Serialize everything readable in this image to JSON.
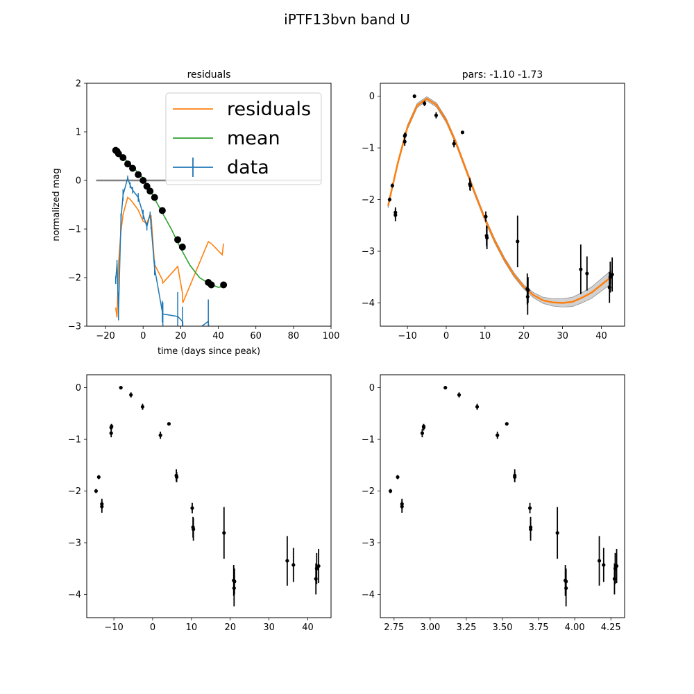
{
  "figure": {
    "suptitle": "iPTF13bvn band U"
  },
  "chart_data": [
    {
      "type": "line",
      "title": "residuals",
      "xlabel": "time (days since peak)",
      "ylabel": "normalized mag",
      "xlim": [
        -30,
        100
      ],
      "ylim": [
        -3,
        2
      ],
      "xticks": [
        -20,
        0,
        20,
        40,
        60,
        80,
        100
      ],
      "yticks": [
        -3,
        -2,
        -1,
        0,
        1,
        2
      ],
      "legend": {
        "placement": "upper-right",
        "entries": [
          "residuals",
          "mean",
          "data"
        ]
      },
      "colors": {
        "residuals": "#ff7f0e",
        "mean": "#2ca02c",
        "data": "#1f77b4",
        "baseline": "#808080",
        "markers": "#000000"
      },
      "baseline": {
        "x": [
          -25,
          95
        ],
        "y": 0
      },
      "series": [
        {
          "name": "residuals",
          "x": [
            -14.6,
            -13.9,
            -13.1,
            -11.8,
            -10.7,
            -8.2,
            -6.9,
            -5.6,
            -2.6,
            0,
            2,
            3.7,
            4.2,
            6.1,
            10.2,
            10.5,
            18.4,
            20.9,
            21.1,
            34.7,
            36.3,
            42.1,
            42.8
          ],
          "y": [
            -2.62,
            -2.82,
            -1.7,
            -1.05,
            -0.7,
            -0.35,
            -0.39,
            -0.45,
            -0.61,
            -0.84,
            -0.88,
            -0.71,
            -0.72,
            -1.73,
            -2.04,
            -2.11,
            -1.77,
            -2.31,
            -2.52,
            -1.26,
            -1.3,
            -1.53,
            -1.3
          ]
        },
        {
          "name": "mean",
          "x": [
            -15,
            -10,
            -5,
            0,
            5,
            10,
            15,
            20,
            25,
            30,
            35,
            40,
            43
          ],
          "y": [
            0.62,
            0.45,
            0.25,
            0.05,
            -0.3,
            -0.65,
            -1.0,
            -1.4,
            -1.75,
            -2.0,
            -2.12,
            -2.2,
            -2.18
          ]
        },
        {
          "name": "data",
          "x": [
            -14.6,
            -13.9,
            -13.1,
            -11.8,
            -10.7,
            -8.2,
            -6.9,
            -5.6,
            -2.6,
            0,
            2,
            3.7,
            4.2,
            6.1,
            10.2,
            10.5,
            18.4,
            20.9,
            21.1,
            34.7,
            36.3
          ],
          "y": [
            -2.05,
            -1.72,
            -2.7,
            -0.8,
            -0.3,
            0.05,
            -0.1,
            -0.2,
            -0.35,
            -0.7,
            -0.95,
            -0.7,
            -0.9,
            -1.8,
            -2.7,
            -2.75,
            -2.8,
            -2.9,
            -3.3,
            -2.9,
            -4.0
          ],
          "err": [
            0.08,
            0.08,
            0.18,
            0.12,
            0.12,
            0.05,
            0.06,
            0.07,
            0.09,
            0.1,
            0.08,
            0.06,
            0.1,
            0.15,
            0.22,
            0.24,
            0.5,
            0.3,
            0.4,
            0.45,
            0.35
          ]
        },
        {
          "name": "",
          "x": [
            -14.6,
            -13.9,
            -13.1,
            -10.7,
            -8.2,
            -5.6,
            -2.6,
            0,
            2,
            3.7,
            6.1,
            10.2,
            18.4,
            20.9,
            34.7,
            36.3,
            42.8
          ],
          "y": [
            0.62,
            0.6,
            0.55,
            0.47,
            0.34,
            0.25,
            0.12,
            0.0,
            -0.12,
            -0.22,
            -0.35,
            -0.62,
            -1.22,
            -1.37,
            -2.1,
            -2.15,
            -2.15
          ]
        }
      ]
    },
    {
      "type": "line",
      "title": "pars: -1.10 -1.73",
      "xlim": [
        -17,
        46
      ],
      "ylim": [
        -4.45,
        0.25
      ],
      "xticks": [
        -10,
        0,
        10,
        20,
        30,
        40
      ],
      "yticks": [
        0,
        -1,
        -2,
        -3,
        -4
      ],
      "colors": {
        "fit": "#ff7f0e",
        "band": "#bdbdbd",
        "points": "#000000"
      },
      "series": [
        {
          "name": "",
          "x": [
            -15,
            -12.5,
            -10,
            -7.5,
            -5,
            -2.5,
            0,
            2.5,
            5,
            7.5,
            10,
            12.5,
            15,
            17.5,
            20,
            22.5,
            25,
            27.5,
            30,
            32.5,
            35,
            37.5,
            40,
            42.5
          ],
          "y": [
            -2.12,
            -1.3,
            -0.6,
            -0.18,
            -0.05,
            -0.17,
            -0.47,
            -0.9,
            -1.4,
            -1.9,
            -2.38,
            -2.8,
            -3.16,
            -3.46,
            -3.69,
            -3.85,
            -3.95,
            -3.99,
            -4.0,
            -3.98,
            -3.9,
            -3.8,
            -3.65,
            -3.5
          ],
          "band": 0.04
        },
        {
          "name": "",
          "x": [
            -14.6,
            -13.9,
            -13.1,
            -13.1,
            -10.7,
            -10.7,
            -10.6,
            -8.2,
            -5.6,
            -2.6,
            2.0,
            4.2,
            6.1,
            6.2,
            10.2,
            10.4,
            10.5,
            18.4,
            20.9,
            21.0,
            21.1,
            34.7,
            36.3,
            42.1,
            42.3,
            42.8
          ],
          "y": [
            -2.0,
            -1.73,
            -2.25,
            -2.3,
            -0.88,
            -0.77,
            -0.75,
            0.0,
            -0.14,
            -0.37,
            -0.92,
            -0.7,
            -1.7,
            -1.73,
            -2.33,
            -2.7,
            -2.74,
            -2.81,
            -3.73,
            -3.88,
            -3.75,
            -3.35,
            -3.43,
            -3.7,
            -3.5,
            -3.45
          ],
          "err": [
            0.04,
            0.04,
            0.1,
            0.12,
            0.08,
            0.06,
            0.05,
            0.03,
            0.05,
            0.06,
            0.07,
            0.03,
            0.12,
            0.1,
            0.1,
            0.2,
            0.22,
            0.5,
            0.3,
            0.35,
            0.25,
            0.48,
            0.33,
            0.3,
            0.3,
            0.33
          ]
        }
      ]
    },
    {
      "type": "scatter",
      "title": "",
      "xlim": [
        -17,
        46
      ],
      "ylim": [
        -4.45,
        0.25
      ],
      "xticks": [
        -10,
        0,
        10,
        20,
        30,
        40
      ],
      "yticks": [
        0,
        -1,
        -2,
        -3,
        -4
      ],
      "series": [
        {
          "name": "",
          "x": [
            -14.6,
            -13.9,
            -13.1,
            -13.1,
            -10.7,
            -10.7,
            -10.6,
            -8.2,
            -5.6,
            -2.6,
            2.0,
            4.2,
            6.1,
            6.2,
            10.2,
            10.4,
            10.5,
            18.4,
            20.9,
            21.0,
            21.1,
            34.7,
            36.3,
            42.1,
            42.3,
            42.8
          ],
          "y": [
            -2.0,
            -1.73,
            -2.25,
            -2.3,
            -0.88,
            -0.77,
            -0.75,
            0.0,
            -0.14,
            -0.37,
            -0.92,
            -0.7,
            -1.7,
            -1.73,
            -2.33,
            -2.7,
            -2.74,
            -2.81,
            -3.73,
            -3.88,
            -3.75,
            -3.35,
            -3.43,
            -3.7,
            -3.5,
            -3.45
          ],
          "err": [
            0.04,
            0.04,
            0.1,
            0.12,
            0.08,
            0.06,
            0.05,
            0.03,
            0.05,
            0.06,
            0.07,
            0.03,
            0.12,
            0.1,
            0.1,
            0.2,
            0.22,
            0.5,
            0.3,
            0.35,
            0.25,
            0.48,
            0.33,
            0.3,
            0.3,
            0.33
          ]
        }
      ]
    },
    {
      "type": "scatter",
      "title": "",
      "xlim": [
        2.655,
        4.345
      ],
      "ylim": [
        -4.45,
        0.25
      ],
      "xticks": [
        2.75,
        3.0,
        3.25,
        3.5,
        3.75,
        4.0,
        4.25
      ],
      "xticklabels": [
        "2.75",
        "3.00",
        "3.25",
        "3.50",
        "3.75",
        "4.00",
        "4.25"
      ],
      "yticks": [
        0,
        -1,
        -2,
        -3,
        -4
      ],
      "series": [
        {
          "name": "",
          "x": [
            2.725,
            2.775,
            2.805,
            2.805,
            2.945,
            2.955,
            2.955,
            3.105,
            3.2,
            3.325,
            3.465,
            3.53,
            3.585,
            3.585,
            3.69,
            3.695,
            3.695,
            3.88,
            3.935,
            3.94,
            3.94,
            4.17,
            4.2,
            4.275,
            4.28,
            4.29
          ],
          "y": [
            -2.0,
            -1.73,
            -2.25,
            -2.3,
            -0.88,
            -0.77,
            -0.75,
            0.0,
            -0.14,
            -0.37,
            -0.92,
            -0.7,
            -1.7,
            -1.73,
            -2.33,
            -2.7,
            -2.74,
            -2.81,
            -3.73,
            -3.88,
            -3.75,
            -3.35,
            -3.43,
            -3.7,
            -3.5,
            -3.45
          ],
          "err": [
            0.04,
            0.04,
            0.1,
            0.12,
            0.08,
            0.06,
            0.05,
            0.03,
            0.05,
            0.06,
            0.07,
            0.03,
            0.12,
            0.1,
            0.1,
            0.2,
            0.22,
            0.5,
            0.3,
            0.35,
            0.25,
            0.48,
            0.33,
            0.3,
            0.3,
            0.33
          ]
        }
      ]
    }
  ]
}
